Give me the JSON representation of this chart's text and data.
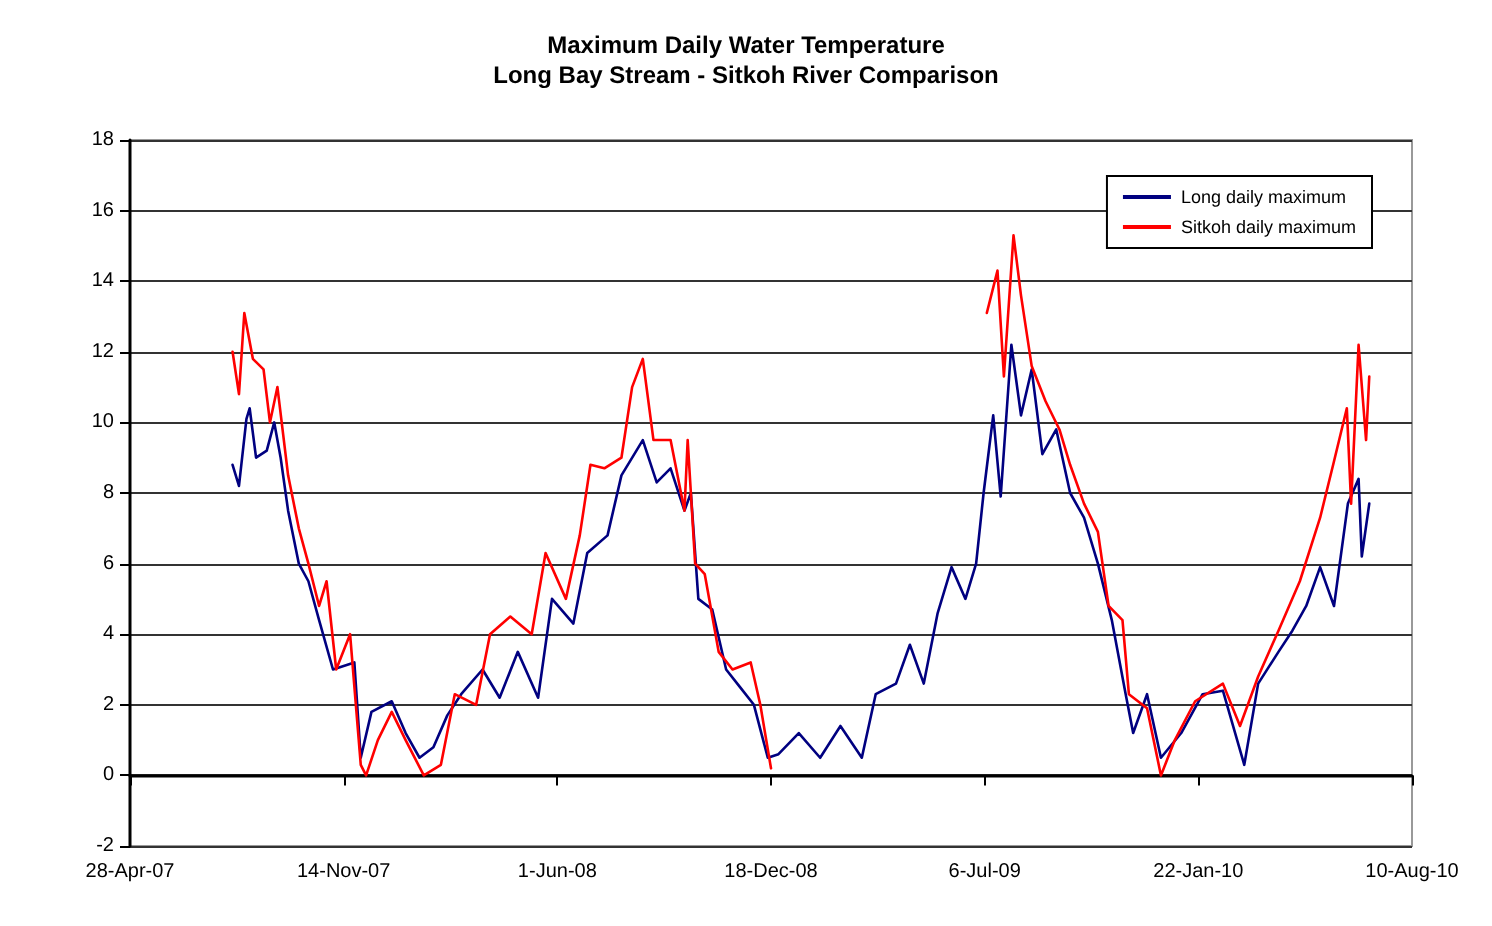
{
  "chart_data": {
    "type": "line",
    "title": "Maximum Daily Water Temperature",
    "subtitle": "Long Bay Stream - Sitkoh River Comparison",
    "xlim": [
      "2007-04-28",
      "2010-08-10"
    ],
    "xticks": [
      {
        "value": "2007-04-28",
        "label": "28-Apr-07"
      },
      {
        "value": "2007-11-14",
        "label": "14-Nov-07"
      },
      {
        "value": "2008-06-01",
        "label": "1-Jun-08"
      },
      {
        "value": "2008-12-18",
        "label": "18-Dec-08"
      },
      {
        "value": "2009-07-06",
        "label": "6-Jul-09"
      },
      {
        "value": "2010-01-22",
        "label": "22-Jan-10"
      },
      {
        "value": "2010-08-10",
        "label": "10-Aug-10"
      }
    ],
    "ylim": [
      -2,
      18
    ],
    "yticks": [
      -2,
      0,
      2,
      4,
      6,
      8,
      10,
      12,
      14,
      16,
      18
    ],
    "grid": "y",
    "legend": "top right",
    "series": [
      {
        "name": "Long daily maximum",
        "color": "#000080",
        "x": [
          "2007-08-02",
          "2007-08-08",
          "2007-08-15",
          "2007-08-18",
          "2007-08-24",
          "2007-09-03",
          "2007-09-10",
          "2007-09-16",
          "2007-09-23",
          "2007-10-03",
          "2007-10-12",
          "2007-10-22",
          "2007-11-04",
          "2007-11-24",
          "2007-11-30",
          "2007-12-10",
          "2007-12-29",
          "2008-01-11",
          "2008-01-24",
          "2008-02-06",
          "2008-02-19",
          "2008-03-03",
          "2008-03-23",
          "2008-04-08",
          "2008-04-25",
          "2008-05-14",
          "2008-05-27",
          "2008-06-16",
          "2008-06-29",
          "2008-07-18",
          "2008-07-31",
          "2008-08-20",
          "2008-09-02",
          "2008-09-15",
          "2008-09-28",
          "2008-10-04",
          "2008-10-11",
          "2008-10-24",
          "2008-11-06",
          "2008-11-19",
          "2008-12-02",
          "2008-12-15",
          "2008-12-25",
          "2009-01-13",
          "2009-02-02",
          "2009-02-21",
          "2009-03-13",
          "2009-03-26",
          "2009-04-14",
          "2009-04-27",
          "2009-05-10",
          "2009-05-23",
          "2009-06-05",
          "2009-06-18",
          "2009-06-28",
          "2009-07-05",
          "2009-07-14",
          "2009-07-21",
          "2009-07-31",
          "2009-08-09",
          "2009-08-19",
          "2009-08-29",
          "2009-09-11",
          "2009-09-24",
          "2009-10-07",
          "2009-10-20",
          "2009-11-02",
          "2009-11-15",
          "2009-11-22",
          "2009-12-05",
          "2009-12-18",
          "2010-01-06",
          "2010-01-26",
          "2010-02-14",
          "2010-03-06",
          "2010-03-19",
          "2010-04-07",
          "2010-04-20",
          "2010-05-03",
          "2010-05-16",
          "2010-05-29",
          "2010-06-11",
          "2010-06-21",
          "2010-06-24",
          "2010-07-01"
        ],
        "values": [
          8.8,
          8.2,
          10.1,
          10.4,
          9.0,
          9.2,
          10.0,
          9.0,
          7.5,
          6.0,
          5.5,
          4.4,
          3.0,
          3.2,
          0.5,
          1.8,
          2.1,
          1.2,
          0.5,
          0.8,
          1.7,
          2.3,
          3.0,
          2.2,
          3.5,
          2.2,
          5.0,
          4.3,
          6.3,
          6.8,
          8.5,
          9.5,
          8.3,
          8.7,
          7.5,
          8.0,
          5.0,
          4.7,
          3.0,
          2.5,
          2.0,
          0.5,
          0.6,
          1.2,
          0.5,
          1.4,
          0.5,
          2.3,
          2.6,
          3.7,
          2.6,
          4.6,
          5.9,
          5.0,
          6.0,
          8.0,
          10.2,
          7.9,
          12.2,
          10.2,
          11.5,
          9.1,
          9.8,
          8.0,
          7.3,
          6.0,
          4.4,
          2.3,
          1.2,
          2.3,
          0.5,
          1.2,
          2.3,
          2.4,
          0.3,
          2.6,
          3.5,
          4.1,
          4.8,
          5.9,
          4.8,
          7.7,
          8.4,
          6.2,
          7.7
        ]
      },
      {
        "name": "Sitkoh daily maximum",
        "color": "#ff0000",
        "x": [
          "2007-08-02",
          "2007-08-08",
          "2007-08-13",
          "2007-08-21",
          "2007-08-31",
          "2007-09-06",
          "2007-09-13",
          "2007-09-23",
          "2007-10-03",
          "2007-10-12",
          "2007-10-22",
          "2007-10-29",
          "2007-11-07",
          "2007-11-20",
          "2007-11-30",
          "2007-12-05",
          "2007-12-16",
          "2007-12-29",
          "2008-01-11",
          "2008-01-28",
          "2008-02-13",
          "2008-02-26",
          "2008-03-17",
          "2008-03-30",
          "2008-04-18",
          "2008-05-08",
          "2008-05-21",
          "2008-06-09",
          "2008-06-22",
          "2008-07-02",
          "2008-07-15",
          "2008-07-31",
          "2008-08-10",
          "2008-08-20",
          "2008-08-30",
          "2008-09-15",
          "2008-09-28",
          "2008-10-01",
          "2008-10-08",
          "2008-10-17",
          "2008-10-30",
          "2008-11-12",
          "2008-11-29",
          "2008-12-08",
          "2008-12-18",
          "2009-03-01",
          "2009-07-08",
          "2009-07-18",
          "2009-07-24",
          "2009-08-02",
          "2009-08-09",
          "2009-08-19",
          "2009-09-01",
          "2009-09-14",
          "2009-09-24",
          "2009-10-07",
          "2009-10-20",
          "2009-10-30",
          "2009-11-12",
          "2009-11-18",
          "2009-12-05",
          "2009-12-18",
          "2009-12-31",
          "2010-01-19",
          "2010-02-14",
          "2010-03-02",
          "2010-03-19",
          "2010-04-07",
          "2010-04-27",
          "2010-05-16",
          "2010-05-29",
          "2010-06-10",
          "2010-06-14",
          "2010-06-21",
          "2010-06-28",
          "2010-07-01"
        ],
        "values": [
          12.0,
          10.8,
          13.1,
          11.8,
          11.5,
          10.0,
          11.0,
          8.5,
          7.0,
          6.0,
          4.8,
          5.5,
          3.0,
          4.0,
          0.3,
          0.0,
          1.0,
          1.8,
          1.0,
          0.0,
          0.3,
          2.3,
          2.0,
          4.0,
          4.5,
          4.0,
          6.3,
          5.0,
          6.8,
          8.8,
          8.7,
          9.0,
          11.0,
          11.8,
          9.5,
          9.5,
          7.5,
          9.5,
          6.0,
          5.7,
          3.5,
          3.0,
          3.2,
          2.0,
          0.2,
          null,
          13.1,
          14.3,
          11.3,
          15.3,
          13.6,
          11.6,
          10.6,
          9.8,
          8.8,
          7.7,
          6.9,
          4.8,
          4.4,
          2.3,
          1.9,
          0.0,
          1.0,
          2.1,
          2.6,
          1.4,
          2.8,
          4.1,
          5.5,
          7.3,
          8.9,
          10.4,
          7.7,
          12.2,
          9.5,
          11.3
        ]
      }
    ]
  }
}
